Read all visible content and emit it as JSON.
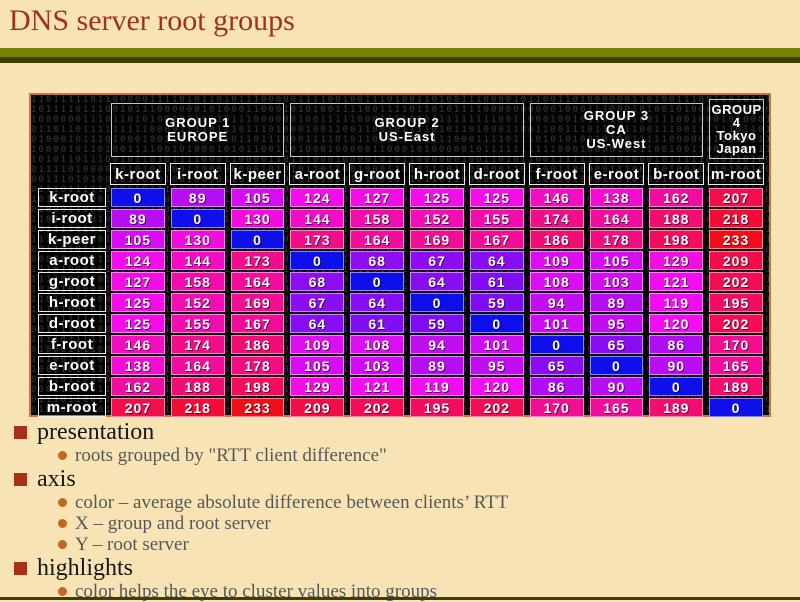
{
  "slide": {
    "title": "DNS server root groups",
    "colors": {
      "background": "#f8e3b4",
      "title": "#a2301e",
      "divider_olive": "#788200",
      "divider_dark": "#3c4000",
      "table_border": "#c87a3a",
      "bullet_square": "#a93016",
      "bullet_dot": "#c0681c"
    }
  },
  "chart_data": {
    "type": "heatmap",
    "title": "DNS server root groups",
    "xlabel": "group and root server",
    "ylabel": "root server",
    "color_meaning": "average absolute difference between clients’ RTT",
    "groups": [
      {
        "label_lines": [
          "GROUP 1",
          "EUROPE"
        ],
        "span": 3
      },
      {
        "label_lines": [
          "GROUP 2",
          "US-East"
        ],
        "span": 4
      },
      {
        "label_lines": [
          "GROUP 3",
          "CA",
          "US-West"
        ],
        "span": 3
      },
      {
        "label_lines": [
          "GROUP",
          "4",
          "Tokyo",
          "Japan"
        ],
        "span": 1
      }
    ],
    "columns": [
      "k-root",
      "i-root",
      "k-peer",
      "a-root",
      "g-root",
      "h-root",
      "d-root",
      "f-root",
      "e-root",
      "b-root",
      "m-root"
    ],
    "rows": [
      "k-root",
      "i-root",
      "k-peer",
      "a-root",
      "g-root",
      "h-root",
      "d-root",
      "f-root",
      "e-root",
      "b-root",
      "m-root"
    ],
    "values": [
      [
        0,
        89,
        105,
        124,
        127,
        125,
        125,
        146,
        138,
        162,
        207
      ],
      [
        89,
        0,
        130,
        144,
        158,
        152,
        155,
        174,
        164,
        188,
        218
      ],
      [
        105,
        130,
        0,
        173,
        164,
        169,
        167,
        186,
        178,
        198,
        233
      ],
      [
        124,
        144,
        173,
        0,
        68,
        67,
        64,
        109,
        105,
        129,
        209
      ],
      [
        127,
        158,
        164,
        68,
        0,
        64,
        61,
        108,
        103,
        121,
        202
      ],
      [
        125,
        152,
        169,
        67,
        64,
        0,
        59,
        94,
        89,
        119,
        195
      ],
      [
        125,
        155,
        167,
        64,
        61,
        59,
        0,
        101,
        95,
        120,
        202
      ],
      [
        146,
        174,
        186,
        109,
        108,
        94,
        101,
        0,
        65,
        86,
        170
      ],
      [
        138,
        164,
        178,
        105,
        103,
        89,
        95,
        65,
        0,
        90,
        165
      ],
      [
        162,
        188,
        198,
        129,
        121,
        119,
        120,
        86,
        90,
        0,
        189
      ],
      [
        207,
        218,
        233,
        209,
        202,
        195,
        202,
        170,
        165,
        189,
        0
      ]
    ],
    "color_scale": {
      "mapping": "hsl hue = 240 + value/2, sat 90%, light 50%",
      "zero": "#1b1be0",
      "low": "#6c22dd",
      "mid": "#d820d8",
      "high": "#ee1177",
      "max": "#ee2211"
    }
  },
  "bullets": [
    {
      "level": 1,
      "text": "presentation"
    },
    {
      "level": 2,
      "text": "roots grouped by \"RTT client difference\""
    },
    {
      "level": 1,
      "text": "axis"
    },
    {
      "level": 2,
      "text": "color – average absolute difference between clients’ RTT"
    },
    {
      "level": 2,
      "text": "X – group and root server"
    },
    {
      "level": 2,
      "text": "Y – root server"
    },
    {
      "level": 1,
      "text": "highlights"
    },
    {
      "level": 2,
      "text": "color helps the eye to cluster values into groups"
    }
  ]
}
